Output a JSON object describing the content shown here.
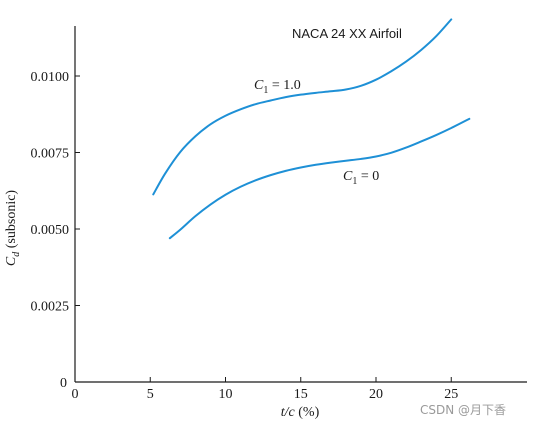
{
  "chart_data": {
    "type": "line",
    "title": "NACA 24 XX Airfoil",
    "xlabel": "t/c (%)",
    "ylabel": "Cd (subsonic)",
    "xlim": [
      0,
      30
    ],
    "ylim": [
      0,
      0.012
    ],
    "x_ticks": [
      0,
      5,
      10,
      15,
      20,
      25
    ],
    "x_tick_labels": [
      "0",
      "5",
      "10",
      "15",
      "20",
      "25"
    ],
    "y_ticks": [
      0,
      0.0025,
      0.005,
      0.0075,
      0.01
    ],
    "y_tick_labels": [
      "0",
      "0.0025",
      "0.0050",
      "0.0075",
      "0.0100"
    ],
    "grid": false,
    "series": [
      {
        "name": "C1 = 1.0",
        "color": "#1e90d6",
        "x": [
          5.2,
          6,
          7,
          8,
          9,
          10,
          11,
          12,
          13,
          14,
          15,
          16,
          17,
          18,
          19,
          20,
          21,
          22,
          23,
          24,
          25
        ],
        "y": [
          0.00613,
          0.00682,
          0.00752,
          0.00803,
          0.00842,
          0.0087,
          0.00891,
          0.00908,
          0.0092,
          0.00931,
          0.00939,
          0.00945,
          0.0095,
          0.00956,
          0.00968,
          0.00988,
          0.01015,
          0.01047,
          0.01085,
          0.0113,
          0.01185
        ]
      },
      {
        "name": "C1 = 0",
        "color": "#1e90d6",
        "x": [
          6.3,
          7,
          8,
          9,
          10,
          11,
          12,
          13,
          14,
          15,
          16,
          17,
          18,
          19,
          20,
          21,
          22,
          23,
          24,
          25,
          26.2
        ],
        "y": [
          0.0047,
          0.00498,
          0.00542,
          0.0058,
          0.00612,
          0.00638,
          0.00659,
          0.00676,
          0.0069,
          0.00701,
          0.0071,
          0.00717,
          0.00723,
          0.00729,
          0.00737,
          0.00749,
          0.00766,
          0.00786,
          0.00807,
          0.0083,
          0.0086
        ]
      }
    ]
  },
  "labels": {
    "c1_high": {
      "var": "C",
      "sub": "1",
      "rest": " = 1.0"
    },
    "c1_zero": {
      "var": "C",
      "sub": "1",
      "rest": " = 0"
    },
    "ylabel": {
      "var": "C",
      "sub": "d",
      "rest": " (subsonic)"
    },
    "xlabel": {
      "var": "t/c",
      "rest": " (%)"
    }
  },
  "watermark": "CSDN @月下香"
}
